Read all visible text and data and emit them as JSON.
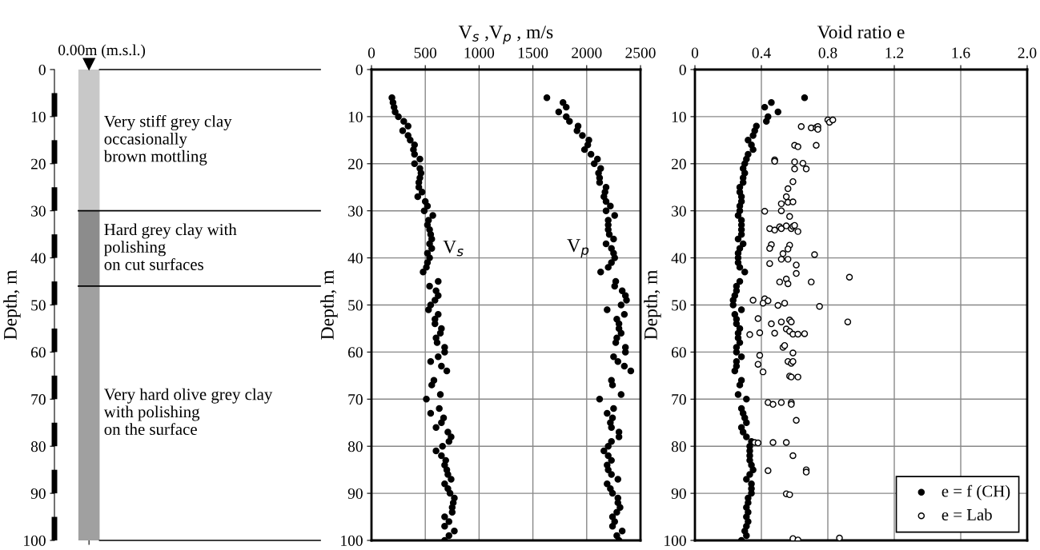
{
  "chart_data": [
    {
      "type": "bar",
      "stacked": true,
      "categories": [
        null
      ],
      "ylabel": "Depth, m",
      "ylim": [
        100,
        0
      ],
      "yticks": [
        0,
        10,
        20,
        30,
        40,
        50,
        60,
        70,
        80,
        90,
        100
      ],
      "tick_labels": "y",
      "series": [
        {
          "name": "Very stiff grey clay\noccasionally\nbrown mottling",
          "color": "#c8c8c8",
          "values": [
            30
          ]
        },
        {
          "name": "Hard grey clay with\npolishing\non cut surfaces",
          "color": "#8c8c8c",
          "values": [
            16
          ]
        },
        {
          "name": "Very hard olive grey clay\nwith polishing\non the surface",
          "color": "#a0a0a0",
          "values": [
            54
          ]
        }
      ],
      "ref_lines": [
        {
          "axis": "y",
          "value": 30
        },
        {
          "axis": "y",
          "value": 46
        }
      ],
      "annotations": [
        "0.00m (m.s.l.)"
      ]
    },
    {
      "type": "scatter",
      "xlabel": "V$_{s}$ ,V$_{p}$ , m/s",
      "ylabel": "Depth, m",
      "xlim": [
        0,
        2500
      ],
      "xticks": [
        0,
        500,
        1000,
        1500,
        2000,
        2500
      ],
      "ylim": [
        100,
        0
      ],
      "yticks": [
        0,
        10,
        20,
        30,
        40,
        50,
        60,
        70,
        80,
        90,
        100
      ],
      "grid": true,
      "marker": "circle",
      "series": [
        {
          "name": "V$_{s}$",
          "color": "#000000",
          "x": [
            190,
            200,
            210,
            220,
            250,
            300,
            340,
            290,
            340,
            360,
            400,
            390,
            400,
            450,
            400,
            450,
            460,
            450,
            440,
            440,
            470,
            430,
            500,
            520,
            490,
            570,
            530,
            520,
            540,
            550,
            560,
            540,
            560,
            520,
            540,
            520,
            510,
            480,
            620,
            540,
            600,
            620,
            590,
            550,
            530,
            620,
            590,
            590,
            650,
            640,
            600,
            610,
            680,
            680,
            620,
            550,
            650,
            700,
            580,
            560,
            640,
            510,
            630,
            550,
            670,
            650,
            600,
            710,
            740,
            720,
            660,
            600,
            650,
            690,
            680,
            700,
            710,
            740,
            680,
            710,
            730,
            770,
            760,
            750,
            750,
            680,
            720,
            680,
            770,
            720,
            680
          ],
          "values": [
            6,
            7,
            8,
            9,
            10,
            11,
            12,
            13,
            14,
            15,
            16,
            17,
            18,
            19,
            20,
            21,
            22,
            23,
            24,
            25,
            26,
            27,
            28,
            29,
            30,
            31,
            32,
            33,
            34,
            35,
            36,
            37,
            38,
            39,
            40,
            41,
            42,
            43,
            45,
            46,
            47,
            48,
            49,
            50,
            51,
            52,
            53,
            54,
            55,
            56,
            57,
            58,
            59,
            60,
            61,
            62,
            63,
            64,
            66,
            67,
            69,
            70,
            72,
            73,
            74,
            75,
            76,
            77,
            78,
            79,
            80,
            81,
            82,
            83,
            84,
            85,
            86,
            87,
            88,
            89,
            90,
            91,
            92,
            93,
            94,
            95,
            96,
            97,
            98,
            99,
            100
          ]
        },
        {
          "name": "V$_{p}$",
          "color": "#000000",
          "x": [
            1630,
            1780,
            1810,
            1740,
            1810,
            1840,
            1920,
            1910,
            1960,
            2020,
            2010,
            1980,
            2040,
            2100,
            2070,
            2130,
            2110,
            2120,
            2120,
            2180,
            2170,
            2160,
            2180,
            2220,
            2180,
            2260,
            2200,
            2200,
            2200,
            2210,
            2250,
            2180,
            2230,
            2250,
            2260,
            2230,
            2200,
            2130,
            2270,
            2260,
            2330,
            2360,
            2370,
            2320,
            2190,
            2350,
            2280,
            2300,
            2300,
            2320,
            2280,
            2270,
            2360,
            2360,
            2250,
            2290,
            2350,
            2410,
            2230,
            2240,
            2320,
            2120,
            2250,
            2190,
            2240,
            2220,
            2230,
            2300,
            2300,
            2230,
            2200,
            2160,
            2200,
            2230,
            2190,
            2200,
            2230,
            2290,
            2190,
            2220,
            2240,
            2290,
            2290,
            2310,
            2280,
            2240,
            2260,
            2240,
            2330,
            2280,
            2300
          ],
          "values": [
            6,
            7,
            8,
            9,
            10,
            11,
            12,
            13,
            14,
            15,
            16,
            17,
            18,
            19,
            20,
            21,
            22,
            23,
            24,
            25,
            26,
            27,
            28,
            29,
            30,
            31,
            32,
            33,
            34,
            35,
            36,
            37,
            38,
            39,
            40,
            41,
            42,
            43,
            45,
            46,
            47,
            48,
            49,
            50,
            51,
            52,
            53,
            54,
            55,
            56,
            57,
            58,
            59,
            60,
            61,
            62,
            63,
            64,
            66,
            67,
            69,
            70,
            72,
            73,
            74,
            75,
            76,
            77,
            78,
            79,
            80,
            81,
            82,
            83,
            84,
            85,
            86,
            87,
            88,
            89,
            90,
            91,
            92,
            93,
            94,
            95,
            96,
            97,
            98,
            99,
            100
          ]
        }
      ],
      "legend": false
    },
    {
      "type": "scatter",
      "xlabel": "Void ratio e",
      "ylabel": "Depth, m",
      "xlim": [
        0,
        2.0
      ],
      "xticks": [
        0,
        0.4,
        0.8,
        1.2,
        1.6,
        {
          "value": 2.0,
          "label": "2.0"
        }
      ],
      "ylim": [
        100,
        0
      ],
      "yticks": [
        0,
        10,
        20,
        30,
        40,
        50,
        60,
        70,
        80,
        90,
        100
      ],
      "grid": true,
      "marker": "circle",
      "legend": "bottom right",
      "series": [
        {
          "name": "e = f (CH)",
          "color": "#000000",
          "x": [
            0.66,
            0.46,
            0.42,
            0.5,
            0.44,
            0.43,
            0.37,
            0.36,
            0.35,
            0.32,
            0.34,
            0.35,
            0.32,
            0.31,
            0.3,
            0.29,
            0.3,
            0.29,
            0.29,
            0.27,
            0.27,
            0.28,
            0.28,
            0.27,
            0.27,
            0.26,
            0.28,
            0.28,
            0.28,
            0.28,
            0.26,
            0.29,
            0.27,
            0.26,
            0.26,
            0.26,
            0.27,
            0.3,
            0.27,
            0.25,
            0.25,
            0.24,
            0.23,
            0.23,
            0.28,
            0.24,
            0.25,
            0.25,
            0.27,
            0.26,
            0.26,
            0.27,
            0.25,
            0.25,
            0.28,
            0.25,
            0.25,
            0.24,
            0.28,
            0.27,
            0.26,
            0.31,
            0.28,
            0.29,
            0.3,
            0.31,
            0.28,
            0.29,
            0.31,
            0.34,
            0.33,
            0.33,
            0.33,
            0.33,
            0.34,
            0.35,
            0.33,
            0.31,
            0.34,
            0.34,
            0.34,
            0.32,
            0.32,
            0.31,
            0.32,
            0.31,
            0.32,
            0.31,
            0.3,
            0.31,
            0.28
          ],
          "values": [
            6,
            7,
            8,
            9,
            10,
            11,
            12,
            13,
            14,
            15,
            16,
            17,
            18,
            19,
            20,
            21,
            22,
            23,
            24,
            25,
            26,
            27,
            28,
            29,
            30,
            31,
            32,
            33,
            34,
            35,
            36,
            37,
            38,
            39,
            40,
            41,
            42,
            43,
            45,
            46,
            47,
            48,
            49,
            50,
            51,
            52,
            53,
            54,
            55,
            56,
            57,
            58,
            59,
            60,
            61,
            62,
            63,
            64,
            66,
            67,
            69,
            70,
            72,
            73,
            74,
            75,
            76,
            77,
            78,
            79,
            80,
            81,
            82,
            83,
            84,
            85,
            86,
            87,
            88,
            89,
            90,
            91,
            92,
            93,
            94,
            95,
            96,
            97,
            98,
            99,
            100
          ]
        },
        {
          "name": "e = Lab",
          "color": "#ffffff",
          "x": [
            0.8,
            0.81,
            0.83,
            0.64,
            0.7,
            0.73,
            0.74,
            0.74,
            0.6,
            0.62,
            0.73,
            0.48,
            0.48,
            0.6,
            0.65,
            0.6,
            0.67,
            0.59,
            0.56,
            0.55,
            0.52,
            0.56,
            0.59,
            0.42,
            0.52,
            0.57,
            0.45,
            0.48,
            0.51,
            0.52,
            0.55,
            0.58,
            0.59,
            0.6,
            0.62,
            0.46,
            0.45,
            0.57,
            0.56,
            0.53,
            0.72,
            0.52,
            0.56,
            0.45,
            0.61,
            0.61,
            0.93,
            0.51,
            0.55,
            0.56,
            0.7,
            0.35,
            0.42,
            0.41,
            0.44,
            0.5,
            0.54,
            0.75,
            0.92,
            0.38,
            0.46,
            0.52,
            0.57,
            0.58,
            0.33,
            0.39,
            0.48,
            0.55,
            0.57,
            0.59,
            0.62,
            0.66,
            0.53,
            0.54,
            0.59,
            0.39,
            0.38,
            0.41,
            0.56,
            0.58,
            0.59,
            0.57,
            0.58,
            0.62,
            0.44,
            0.47,
            0.52,
            0.58,
            0.58,
            0.61,
            0.36,
            0.38,
            0.47,
            0.55,
            0.59,
            0.44,
            0.67,
            0.67,
            0.55,
            0.57,
            0.59,
            0.62,
            0.87
          ],
          "values": [
            10.7,
            11.2,
            10.7,
            12.1,
            12.4,
            12.3,
            12.1,
            12.7,
            16.1,
            16.4,
            16.1,
            19.2,
            19.5,
            19.6,
            19.9,
            21.1,
            21.1,
            23.8,
            25.3,
            27.0,
            28.5,
            28.2,
            28.1,
            30.1,
            30.0,
            31.2,
            33.8,
            34.1,
            33.4,
            33.8,
            33.2,
            33.8,
            33.3,
            33.1,
            34.4,
            37.2,
            38.0,
            37.3,
            38.1,
            39.1,
            39.3,
            40.3,
            40.3,
            41.2,
            41.5,
            43.3,
            44.1,
            45.1,
            44.5,
            45.5,
            45.1,
            49.0,
            48.7,
            49.6,
            49.1,
            50.1,
            49.6,
            50.3,
            53.6,
            52.9,
            54.0,
            53.6,
            53.2,
            53.6,
            56.3,
            55.9,
            56.0,
            55.1,
            55.6,
            56.2,
            56.2,
            56.1,
            59.0,
            58.6,
            60.2,
            60.7,
            62.6,
            64.2,
            62.0,
            62.4,
            62.0,
            65.1,
            65.3,
            65.3,
            70.7,
            71.1,
            70.7,
            70.7,
            71.1,
            74.5,
            79.2,
            79.3,
            79.2,
            79.2,
            82.0,
            85.2,
            85.0,
            85.5,
            90.1,
            90.3,
            99.6,
            99.9,
            99.5
          ]
        }
      ]
    }
  ]
}
